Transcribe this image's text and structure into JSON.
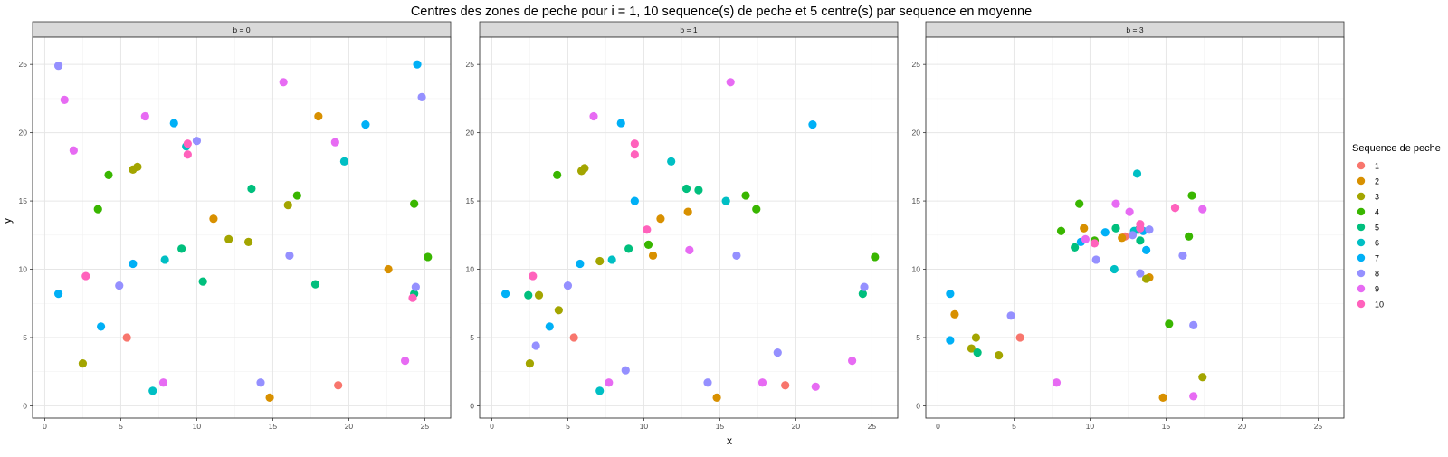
{
  "chart_data": {
    "type": "scatter",
    "title": "Centres des zones de peche pour i = 1, 10 sequence(s) de peche et 5 centre(s) par sequence en moyenne",
    "xlabel": "x",
    "ylabel": "y",
    "xlim": [
      -0.8,
      26.7
    ],
    "ylim": [
      -0.9,
      27.0
    ],
    "x_ticks": [
      0,
      5,
      10,
      15,
      20,
      25
    ],
    "y_ticks": [
      0,
      5,
      10,
      15,
      20,
      25
    ],
    "grid": true,
    "legend_title": "Sequence de peche",
    "legend_position": "right",
    "legend": [
      {
        "name": "1",
        "color": "#F8766D"
      },
      {
        "name": "2",
        "color": "#D89000"
      },
      {
        "name": "3",
        "color": "#A3A500"
      },
      {
        "name": "4",
        "color": "#39B600"
      },
      {
        "name": "5",
        "color": "#00BF7D"
      },
      {
        "name": "6",
        "color": "#00BFC4"
      },
      {
        "name": "7",
        "color": "#00B0F6"
      },
      {
        "name": "8",
        "color": "#9590FF"
      },
      {
        "name": "9",
        "color": "#E76BF3"
      },
      {
        "name": "10",
        "color": "#FF62BC"
      }
    ],
    "panels": [
      {
        "strip": "b = 0",
        "points": [
          {
            "x": 5.4,
            "y": 5.0,
            "s": 1
          },
          {
            "x": 19.3,
            "y": 1.5,
            "s": 1
          },
          {
            "x": 18.0,
            "y": 21.2,
            "s": 2
          },
          {
            "x": 11.1,
            "y": 13.7,
            "s": 2
          },
          {
            "x": 22.6,
            "y": 10.0,
            "s": 2
          },
          {
            "x": 14.8,
            "y": 0.6,
            "s": 2
          },
          {
            "x": 2.5,
            "y": 3.1,
            "s": 3
          },
          {
            "x": 5.8,
            "y": 17.3,
            "s": 3
          },
          {
            "x": 6.1,
            "y": 17.5,
            "s": 3
          },
          {
            "x": 12.1,
            "y": 12.2,
            "s": 3
          },
          {
            "x": 13.4,
            "y": 12.0,
            "s": 3
          },
          {
            "x": 16.0,
            "y": 14.7,
            "s": 3
          },
          {
            "x": 3.5,
            "y": 14.4,
            "s": 4
          },
          {
            "x": 4.2,
            "y": 16.9,
            "s": 4
          },
          {
            "x": 16.6,
            "y": 15.4,
            "s": 4
          },
          {
            "x": 24.3,
            "y": 14.8,
            "s": 4
          },
          {
            "x": 25.2,
            "y": 10.9,
            "s": 4
          },
          {
            "x": 9.0,
            "y": 11.5,
            "s": 5
          },
          {
            "x": 10.4,
            "y": 9.1,
            "s": 5
          },
          {
            "x": 13.6,
            "y": 15.9,
            "s": 5
          },
          {
            "x": 17.8,
            "y": 8.9,
            "s": 5
          },
          {
            "x": 24.3,
            "y": 8.2,
            "s": 5
          },
          {
            "x": 7.1,
            "y": 1.1,
            "s": 6
          },
          {
            "x": 7.9,
            "y": 10.7,
            "s": 6
          },
          {
            "x": 9.3,
            "y": 19.0,
            "s": 6
          },
          {
            "x": 19.7,
            "y": 17.9,
            "s": 6
          },
          {
            "x": 0.9,
            "y": 8.2,
            "s": 7
          },
          {
            "x": 3.7,
            "y": 5.8,
            "s": 7
          },
          {
            "x": 5.8,
            "y": 10.4,
            "s": 7
          },
          {
            "x": 8.5,
            "y": 20.7,
            "s": 7
          },
          {
            "x": 21.1,
            "y": 20.6,
            "s": 7
          },
          {
            "x": 24.5,
            "y": 25.0,
            "s": 7
          },
          {
            "x": 0.9,
            "y": 24.9,
            "s": 8
          },
          {
            "x": 4.9,
            "y": 8.8,
            "s": 8
          },
          {
            "x": 10.0,
            "y": 19.4,
            "s": 8
          },
          {
            "x": 14.2,
            "y": 1.7,
            "s": 8
          },
          {
            "x": 16.1,
            "y": 11.0,
            "s": 8
          },
          {
            "x": 24.4,
            "y": 8.7,
            "s": 8
          },
          {
            "x": 24.8,
            "y": 22.6,
            "s": 8
          },
          {
            "x": 1.3,
            "y": 22.4,
            "s": 9
          },
          {
            "x": 1.9,
            "y": 18.7,
            "s": 9
          },
          {
            "x": 6.6,
            "y": 21.2,
            "s": 9
          },
          {
            "x": 7.8,
            "y": 1.7,
            "s": 9
          },
          {
            "x": 15.7,
            "y": 23.7,
            "s": 9
          },
          {
            "x": 19.1,
            "y": 19.3,
            "s": 9
          },
          {
            "x": 23.7,
            "y": 3.3,
            "s": 9
          },
          {
            "x": 2.7,
            "y": 9.5,
            "s": 10
          },
          {
            "x": 9.4,
            "y": 19.2,
            "s": 10
          },
          {
            "x": 9.4,
            "y": 18.4,
            "s": 10
          },
          {
            "x": 24.2,
            "y": 7.9,
            "s": 10
          }
        ]
      },
      {
        "strip": "b = 1",
        "points": [
          {
            "x": 5.4,
            "y": 5.0,
            "s": 1
          },
          {
            "x": 19.3,
            "y": 1.5,
            "s": 1
          },
          {
            "x": 11.1,
            "y": 13.7,
            "s": 2
          },
          {
            "x": 12.9,
            "y": 14.2,
            "s": 2
          },
          {
            "x": 10.6,
            "y": 11.0,
            "s": 2
          },
          {
            "x": 14.8,
            "y": 0.6,
            "s": 2
          },
          {
            "x": 2.5,
            "y": 3.1,
            "s": 3
          },
          {
            "x": 3.1,
            "y": 8.1,
            "s": 3
          },
          {
            "x": 4.4,
            "y": 7.0,
            "s": 3
          },
          {
            "x": 5.9,
            "y": 17.2,
            "s": 3
          },
          {
            "x": 6.1,
            "y": 17.4,
            "s": 3
          },
          {
            "x": 7.1,
            "y": 10.6,
            "s": 3
          },
          {
            "x": 4.3,
            "y": 16.9,
            "s": 4
          },
          {
            "x": 10.3,
            "y": 11.8,
            "s": 4
          },
          {
            "x": 16.7,
            "y": 15.4,
            "s": 4
          },
          {
            "x": 17.4,
            "y": 14.4,
            "s": 4
          },
          {
            "x": 25.2,
            "y": 10.9,
            "s": 4
          },
          {
            "x": 2.4,
            "y": 8.1,
            "s": 5
          },
          {
            "x": 9.0,
            "y": 11.5,
            "s": 5
          },
          {
            "x": 12.8,
            "y": 15.9,
            "s": 5
          },
          {
            "x": 13.6,
            "y": 15.8,
            "s": 5
          },
          {
            "x": 24.4,
            "y": 8.2,
            "s": 5
          },
          {
            "x": 7.1,
            "y": 1.1,
            "s": 6
          },
          {
            "x": 7.9,
            "y": 10.7,
            "s": 6
          },
          {
            "x": 11.8,
            "y": 17.9,
            "s": 6
          },
          {
            "x": 15.4,
            "y": 15.0,
            "s": 6
          },
          {
            "x": 0.9,
            "y": 8.2,
            "s": 7
          },
          {
            "x": 3.8,
            "y": 5.8,
            "s": 7
          },
          {
            "x": 5.8,
            "y": 10.4,
            "s": 7
          },
          {
            "x": 8.5,
            "y": 20.7,
            "s": 7
          },
          {
            "x": 9.4,
            "y": 15.0,
            "s": 7
          },
          {
            "x": 21.1,
            "y": 20.6,
            "s": 7
          },
          {
            "x": 2.9,
            "y": 4.4,
            "s": 8
          },
          {
            "x": 5.0,
            "y": 8.8,
            "s": 8
          },
          {
            "x": 8.8,
            "y": 2.6,
            "s": 8
          },
          {
            "x": 14.2,
            "y": 1.7,
            "s": 8
          },
          {
            "x": 16.1,
            "y": 11.0,
            "s": 8
          },
          {
            "x": 18.8,
            "y": 3.9,
            "s": 8
          },
          {
            "x": 24.5,
            "y": 8.7,
            "s": 8
          },
          {
            "x": 6.7,
            "y": 21.2,
            "s": 9
          },
          {
            "x": 7.7,
            "y": 1.7,
            "s": 9
          },
          {
            "x": 13.0,
            "y": 11.4,
            "s": 9
          },
          {
            "x": 15.7,
            "y": 23.7,
            "s": 9
          },
          {
            "x": 17.8,
            "y": 1.7,
            "s": 9
          },
          {
            "x": 21.3,
            "y": 1.4,
            "s": 9
          },
          {
            "x": 23.7,
            "y": 3.3,
            "s": 9
          },
          {
            "x": 2.7,
            "y": 9.5,
            "s": 10
          },
          {
            "x": 9.4,
            "y": 19.2,
            "s": 10
          },
          {
            "x": 9.4,
            "y": 18.4,
            "s": 10
          },
          {
            "x": 10.2,
            "y": 12.9,
            "s": 10
          }
        ]
      },
      {
        "strip": "b = 3",
        "points": [
          {
            "x": 5.4,
            "y": 5.0,
            "s": 1
          },
          {
            "x": 12.3,
            "y": 12.4,
            "s": 1
          },
          {
            "x": 1.1,
            "y": 6.7,
            "s": 2
          },
          {
            "x": 9.6,
            "y": 13.0,
            "s": 2
          },
          {
            "x": 12.1,
            "y": 12.3,
            "s": 2
          },
          {
            "x": 13.9,
            "y": 9.4,
            "s": 2
          },
          {
            "x": 14.8,
            "y": 0.6,
            "s": 2
          },
          {
            "x": 2.2,
            "y": 4.2,
            "s": 3
          },
          {
            "x": 2.5,
            "y": 5.0,
            "s": 3
          },
          {
            "x": 4.0,
            "y": 3.7,
            "s": 3
          },
          {
            "x": 13.7,
            "y": 9.3,
            "s": 3
          },
          {
            "x": 17.4,
            "y": 2.1,
            "s": 3
          },
          {
            "x": 8.1,
            "y": 12.8,
            "s": 4
          },
          {
            "x": 9.3,
            "y": 14.8,
            "s": 4
          },
          {
            "x": 10.3,
            "y": 12.1,
            "s": 4
          },
          {
            "x": 15.2,
            "y": 6.0,
            "s": 4
          },
          {
            "x": 16.5,
            "y": 12.4,
            "s": 4
          },
          {
            "x": 16.7,
            "y": 15.4,
            "s": 4
          },
          {
            "x": 2.6,
            "y": 3.9,
            "s": 5
          },
          {
            "x": 9.0,
            "y": 11.6,
            "s": 5
          },
          {
            "x": 11.7,
            "y": 13.0,
            "s": 5
          },
          {
            "x": 13.2,
            "y": 12.9,
            "s": 5
          },
          {
            "x": 13.3,
            "y": 12.1,
            "s": 5
          },
          {
            "x": 11.6,
            "y": 10.0,
            "s": 6
          },
          {
            "x": 12.9,
            "y": 12.8,
            "s": 6
          },
          {
            "x": 13.1,
            "y": 17.0,
            "s": 6
          },
          {
            "x": 0.8,
            "y": 8.2,
            "s": 7
          },
          {
            "x": 0.8,
            "y": 4.8,
            "s": 7
          },
          {
            "x": 9.4,
            "y": 12.0,
            "s": 7
          },
          {
            "x": 11.0,
            "y": 12.7,
            "s": 7
          },
          {
            "x": 13.5,
            "y": 12.8,
            "s": 7
          },
          {
            "x": 13.7,
            "y": 11.4,
            "s": 7
          },
          {
            "x": 4.8,
            "y": 6.6,
            "s": 8
          },
          {
            "x": 10.4,
            "y": 10.7,
            "s": 8
          },
          {
            "x": 12.8,
            "y": 12.5,
            "s": 8
          },
          {
            "x": 13.3,
            "y": 9.7,
            "s": 8
          },
          {
            "x": 13.9,
            "y": 12.9,
            "s": 8
          },
          {
            "x": 16.1,
            "y": 11.0,
            "s": 8
          },
          {
            "x": 16.8,
            "y": 5.9,
            "s": 8
          },
          {
            "x": 7.8,
            "y": 1.7,
            "s": 9
          },
          {
            "x": 9.7,
            "y": 12.2,
            "s": 9
          },
          {
            "x": 11.7,
            "y": 14.8,
            "s": 9
          },
          {
            "x": 12.6,
            "y": 14.2,
            "s": 9
          },
          {
            "x": 15.6,
            "y": 14.5,
            "s": 9
          },
          {
            "x": 16.8,
            "y": 0.7,
            "s": 9
          },
          {
            "x": 17.4,
            "y": 14.4,
            "s": 9
          },
          {
            "x": 10.3,
            "y": 11.9,
            "s": 10
          },
          {
            "x": 13.3,
            "y": 13.3,
            "s": 10
          },
          {
            "x": 13.3,
            "y": 13.0,
            "s": 10
          },
          {
            "x": 15.6,
            "y": 14.5,
            "s": 10
          }
        ]
      }
    ]
  }
}
